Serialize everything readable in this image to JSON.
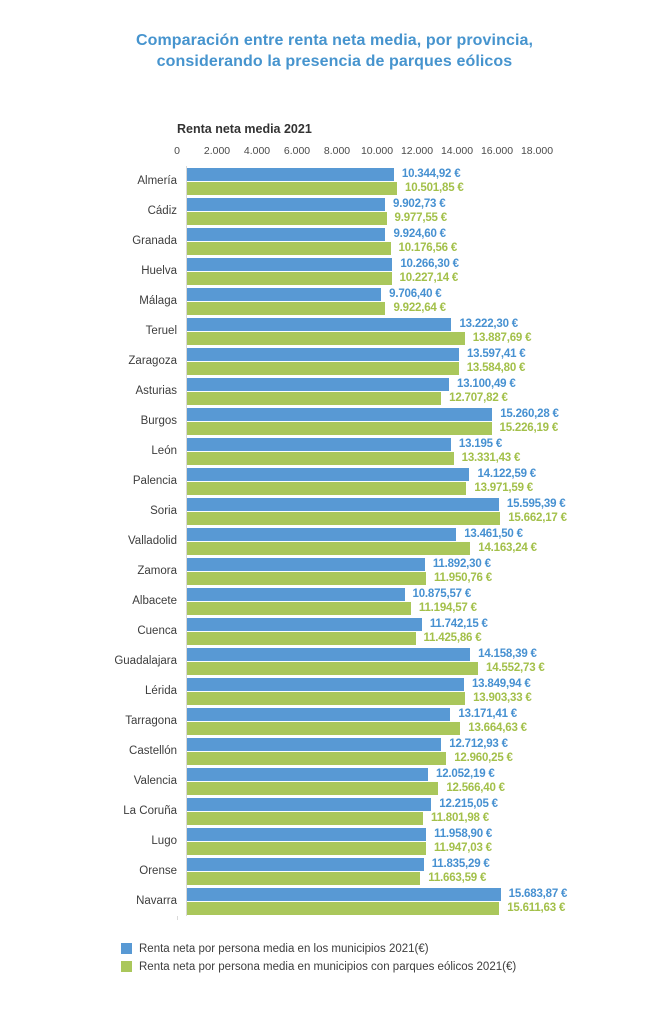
{
  "title": {
    "line1": "Comparación entre renta neta media, por provincia,",
    "line2": "considerando la presencia de parques eólicos",
    "color": "#4694ce"
  },
  "axis": {
    "label": "Renta neta media 2021"
  },
  "colors": {
    "axis_line": "#d9d9d9",
    "tick_text": "#4a4a4a",
    "category_text": "#3d3d3d"
  },
  "chart_data": {
    "type": "bar",
    "orientation": "horizontal",
    "title": "Comparación entre renta neta media, por provincia, considerando la presencia de parques eólicos",
    "xlabel": "Renta neta media 2021",
    "ylabel": "",
    "xlim": [
      0,
      18000
    ],
    "x_ticks": [
      "0",
      "2.000",
      "4.000",
      "6.000",
      "8.000",
      "10.000",
      "12.000",
      "14.000",
      "16.000",
      "18.000"
    ],
    "grid": false,
    "legend_position": "bottom-left",
    "categories": [
      "Almería",
      "Cádiz",
      "Granada",
      "Huelva",
      "Málaga",
      "Teruel",
      "Zaragoza",
      "Asturias",
      "Burgos",
      "León",
      "Palencia",
      "Soria",
      "Valladolid",
      "Zamora",
      "Albacete",
      "Cuenca",
      "Guadalajara",
      "Lérida",
      "Tarragona",
      "Castellón",
      "Valencia",
      "La Coruña",
      "Lugo",
      "Orense",
      "Navarra"
    ],
    "series": [
      {
        "name": "Renta neta por persona media en los municipios 2021(€)",
        "color": "#5899d4",
        "text_color": "#4791d1",
        "values": [
          10344.92,
          9902.73,
          9924.6,
          10266.3,
          9706.4,
          13222.3,
          13597.41,
          13100.49,
          15260.28,
          13195,
          14122.59,
          15595.39,
          13461.5,
          11892.3,
          10875.57,
          11742.15,
          14158.39,
          13849.94,
          13171.41,
          12712.93,
          12052.19,
          12215.05,
          11958.9,
          11835.29,
          15683.87
        ],
        "labels": [
          "10.344,92 €",
          "9.902,73 €",
          "9.924,60 €",
          "10.266,30 €",
          "9.706,40 €",
          "13.222,30 €",
          "13.597,41 €",
          "13.100,49 €",
          "15.260,28 €",
          "13.195 €",
          "14.122,59 €",
          "15.595,39 €",
          "13.461,50 €",
          "11.892,30 €",
          "10.875,57 €",
          "11.742,15 €",
          "14.158,39 €",
          "13.849,94 €",
          "13.171,41 €",
          "12.712,93 €",
          "12.052,19 €",
          "12.215,05 €",
          "11.958,90 €",
          "11.835,29 €",
          "15.683,87 €"
        ]
      },
      {
        "name": "Renta neta por persona media en municipios con parques eólicos 2021(€)",
        "color": "#aac75b",
        "text_color": "#a3c04a",
        "values": [
          10501.85,
          9977.55,
          10176.56,
          10227.14,
          9922.64,
          13887.69,
          13584.8,
          12707.82,
          15226.19,
          13331.43,
          13971.59,
          15662.17,
          14163.24,
          11950.76,
          11194.57,
          11425.86,
          14552.73,
          13903.33,
          13664.63,
          12960.25,
          12566.4,
          11801.98,
          11947.03,
          11663.59,
          15611.63
        ],
        "labels": [
          "10.501,85 €",
          "9.977,55 €",
          "10.176,56 €",
          "10.227,14 €",
          "9.922,64 €",
          "13.887,69 €",
          "13.584,80 €",
          "12.707,82 €",
          "15.226,19 €",
          "13.331,43 €",
          "13.971,59 €",
          "15.662,17 €",
          "14.163,24 €",
          "11.950,76 €",
          "11.194,57 €",
          "11.425,86 €",
          "14.552,73 €",
          "13.903,33 €",
          "13.664,63 €",
          "12.960,25 €",
          "12.566,40 €",
          "11.801,98 €",
          "11.947,03 €",
          "11.663,59 €",
          "15.611,63 €"
        ]
      }
    ]
  }
}
